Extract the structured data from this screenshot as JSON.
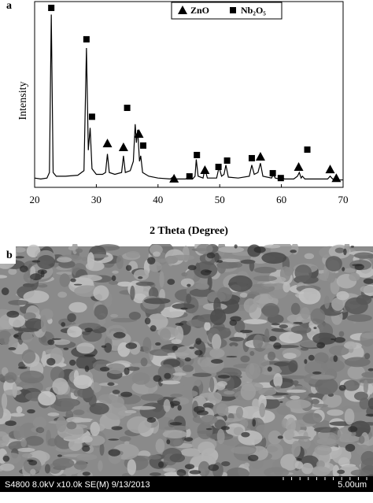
{
  "chart_data": {
    "type": "line",
    "panel_label": "a",
    "xlabel": "2 Theta (Degree)",
    "ylabel": "Intensity",
    "xlim": [
      20,
      70
    ],
    "xticks": [
      20,
      30,
      40,
      50,
      60,
      70
    ],
    "ylim": [
      0,
      100
    ],
    "color": "#000000",
    "x": [
      20,
      21,
      22,
      22.4,
      22.7,
      23.0,
      23.5,
      25,
      27,
      28.0,
      28.4,
      28.7,
      29.0,
      29.3,
      30,
      31,
      31.5,
      31.8,
      32.1,
      33,
      34.1,
      34.4,
      34.7,
      35.5,
      36.0,
      36.3,
      36.5,
      36.7,
      37.0,
      37.2,
      37.5,
      38.5,
      40,
      42,
      42.6,
      43,
      44.5,
      45.1,
      45.6,
      46.0,
      46.2,
      46.5,
      47.3,
      47.6,
      48,
      49.5,
      49.9,
      50.3,
      50.7,
      51.0,
      51.4,
      53,
      54.8,
      55.2,
      55.6,
      56.2,
      56.6,
      57,
      58.4,
      58.7,
      59,
      59.7,
      60,
      60.5,
      62,
      62.6,
      62.9,
      63.2,
      63.4,
      63.8,
      65,
      67.5,
      67.9,
      68.3,
      68.7,
      68.9,
      69.3,
      70
    ],
    "values": [
      5,
      4.5,
      5,
      8,
      93,
      8,
      6,
      6,
      6.5,
      9,
      75,
      20,
      32,
      10,
      7,
      7,
      8,
      18,
      8,
      7,
      8,
      17,
      8,
      9,
      14,
      34,
      24,
      31,
      14,
      17,
      8,
      6,
      5,
      4.5,
      6,
      4.5,
      4.5,
      6,
      4.5,
      6,
      15,
      6,
      5,
      10,
      5,
      5,
      11,
      6,
      7,
      12,
      5.5,
      5,
      6,
      12,
      7,
      8,
      13,
      6,
      5,
      7,
      5,
      4.5,
      5.5,
      4.5,
      4.5,
      6,
      8,
      5,
      6,
      4.5,
      4.5,
      4.5,
      6,
      4.5,
      4.5,
      5.5,
      4,
      4
    ],
    "series": [
      {
        "name": "ZnO",
        "marker": "triangle",
        "color": "#000000",
        "x": [
          31.8,
          34.4,
          36.9,
          42.6,
          47.6,
          56.6,
          62.8,
          67.9,
          68.9
        ],
        "values": [
          23.7,
          21.6,
          28.8,
          4.7,
          9.3,
          16.5,
          11,
          9.7,
          5
        ]
      },
      {
        "name": "Nb₂O₅",
        "marker": "square",
        "color": "#000000",
        "x": [
          22.7,
          28.4,
          29.3,
          35.0,
          37.6,
          45.1,
          46.3,
          49.8,
          51.2,
          55.2,
          58.6,
          59.9,
          64.2
        ],
        "values": [
          96.6,
          79.7,
          38,
          42.8,
          22.5,
          5.9,
          17.4,
          11,
          14.4,
          15.7,
          7.6,
          5,
          20.3
        ]
      }
    ]
  },
  "image": {
    "label": "b",
    "info": "S4800 8.0kV x10.0k SE(M) 9/13/2013",
    "scale": "5.00um"
  }
}
